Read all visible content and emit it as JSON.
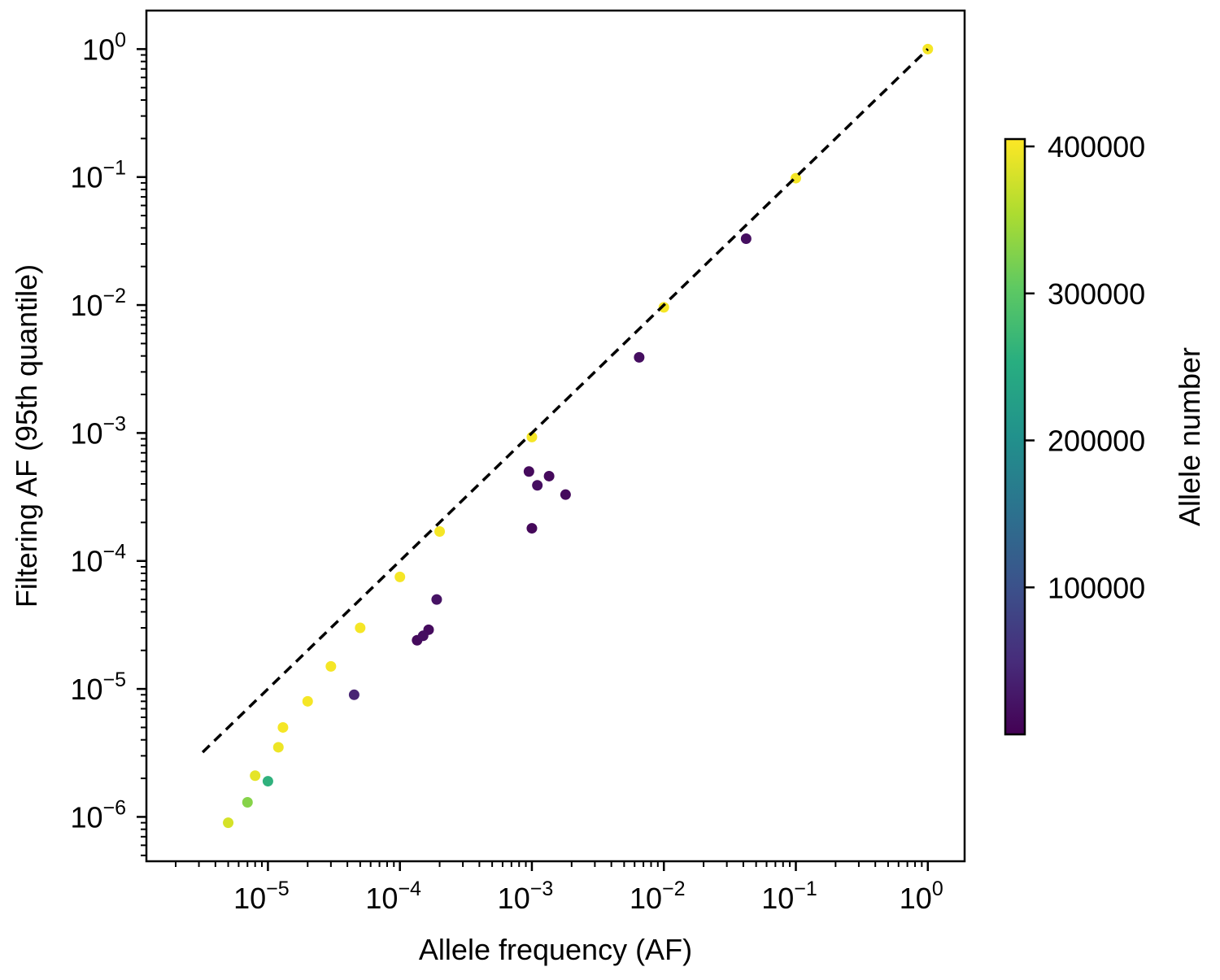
{
  "chart_data": {
    "type": "scatter",
    "title": "",
    "xlabel": "Allele frequency (AF)",
    "ylabel": "Filtering AF (95th quantile)",
    "x_scale": "log",
    "y_scale": "log",
    "xlim": [
      1.2e-06,
      1.9
    ],
    "ylim": [
      4.5e-07,
      2.0
    ],
    "x_ticks": [
      {
        "value": 1e-05,
        "base": "10",
        "exp": "−5"
      },
      {
        "value": 0.0001,
        "base": "10",
        "exp": "−4"
      },
      {
        "value": 0.001,
        "base": "10",
        "exp": "−3"
      },
      {
        "value": 0.01,
        "base": "10",
        "exp": "−2"
      },
      {
        "value": 0.1,
        "base": "10",
        "exp": "−1"
      },
      {
        "value": 1,
        "base": "10",
        "exp": "0"
      }
    ],
    "y_ticks": [
      {
        "value": 1e-06,
        "base": "10",
        "exp": "−6"
      },
      {
        "value": 1e-05,
        "base": "10",
        "exp": "−5"
      },
      {
        "value": 0.0001,
        "base": "10",
        "exp": "−4"
      },
      {
        "value": 0.001,
        "base": "10",
        "exp": "−3"
      },
      {
        "value": 0.01,
        "base": "10",
        "exp": "−2"
      },
      {
        "value": 0.1,
        "base": "10",
        "exp": "−1"
      },
      {
        "value": 1,
        "base": "10",
        "exp": "0"
      }
    ],
    "reference_line": {
      "style": "dashed",
      "color": "#000000",
      "x": [
        3.2e-06,
        1.0
      ],
      "y": [
        3.2e-06,
        1.0
      ]
    },
    "colorbar": {
      "label": "Allele number",
      "colormap": "viridis",
      "range": [
        0,
        405000
      ],
      "tick_values": [
        100000,
        200000,
        300000,
        400000
      ],
      "tick_labels": [
        "100000",
        "200000",
        "300000",
        "400000"
      ]
    },
    "series": [
      {
        "description_color": "dense bands (high allele number)",
        "points": [
          {
            "x": 5e-06,
            "y": 9e-07,
            "an": 380000
          },
          {
            "x": 7e-06,
            "y": 1.3e-06,
            "an": 330000
          },
          {
            "x": 1e-05,
            "y": 1.9e-06,
            "an": 260000
          },
          {
            "x": 8e-06,
            "y": 2.1e-06,
            "an": 390000
          },
          {
            "x": 1.2e-05,
            "y": 3.5e-06,
            "an": 395000
          },
          {
            "x": 1.3e-05,
            "y": 5e-06,
            "an": 400000
          },
          {
            "x": 2e-05,
            "y": 8e-06,
            "an": 400000
          },
          {
            "x": 3e-05,
            "y": 1.5e-05,
            "an": 400000
          },
          {
            "x": 5e-05,
            "y": 3e-05,
            "an": 400000
          },
          {
            "x": 0.0001,
            "y": 7.5e-05,
            "an": 400000
          },
          {
            "x": 0.0002,
            "y": 0.00017,
            "an": 400000
          },
          {
            "x": 0.001,
            "y": 0.00093,
            "an": 400000
          },
          {
            "x": 0.01,
            "y": 0.0096,
            "an": 400000
          },
          {
            "x": 0.1,
            "y": 0.098,
            "an": 400000
          },
          {
            "x": 1,
            "y": 1,
            "an": 400000
          }
        ]
      },
      {
        "description_color": "scattered outliers (low allele number)",
        "points": [
          {
            "x": 4.5e-05,
            "y": 9e-06,
            "an": 40000
          },
          {
            "x": 0.000135,
            "y": 2.4e-05,
            "an": 10000
          },
          {
            "x": 0.00015,
            "y": 2.6e-05,
            "an": 15000
          },
          {
            "x": 0.000165,
            "y": 2.9e-05,
            "an": 12000
          },
          {
            "x": 0.00019,
            "y": 5e-05,
            "an": 20000
          },
          {
            "x": 0.001,
            "y": 0.00018,
            "an": 8000
          },
          {
            "x": 0.00095,
            "y": 0.0005,
            "an": 10000
          },
          {
            "x": 0.0011,
            "y": 0.00039,
            "an": 15000
          },
          {
            "x": 0.00135,
            "y": 0.00046,
            "an": 10000
          },
          {
            "x": 0.0018,
            "y": 0.00033,
            "an": 10000
          },
          {
            "x": 0.0065,
            "y": 0.0039,
            "an": 15000
          },
          {
            "x": 0.042,
            "y": 0.033,
            "an": 15000
          }
        ]
      }
    ],
    "legend": "none",
    "grid": false
  }
}
